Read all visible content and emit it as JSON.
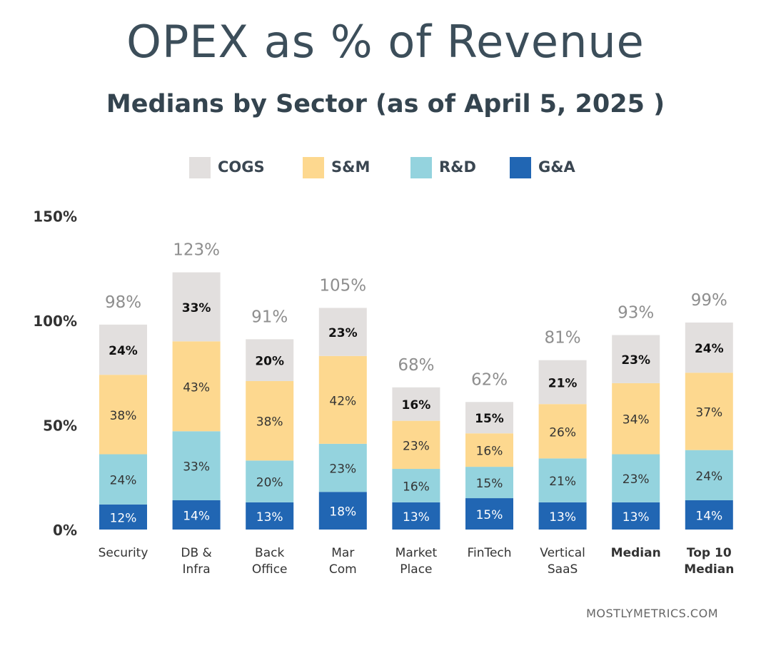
{
  "title": "OPEX as % of Revenue",
  "subtitle": "Medians by Sector (as of  April 5, 2025 )",
  "source": "MOSTLYMETRICS.COM",
  "colors": {
    "COGS": "#e2dfde",
    "S&M": "#fdd88f",
    "R&D": "#94d3de",
    "G&A": "#2166b3"
  },
  "chart_data": {
    "type": "bar",
    "stacked": true,
    "categories": [
      "Security",
      "DB &\nInfra",
      "Back\nOffice",
      "Mar\nCom",
      "Market\nPlace",
      "FinTech",
      "Vertical\nSaaS",
      "Median",
      "Top 10\nMedian"
    ],
    "bold_categories": [
      "Median",
      "Top 10\nMedian"
    ],
    "series": [
      {
        "name": "G&A",
        "values": [
          12,
          14,
          13,
          18,
          13,
          15,
          13,
          13,
          14
        ]
      },
      {
        "name": "R&D",
        "values": [
          24,
          33,
          20,
          23,
          16,
          15,
          21,
          23,
          24
        ]
      },
      {
        "name": "S&M",
        "values": [
          38,
          43,
          38,
          42,
          23,
          16,
          26,
          34,
          37
        ]
      },
      {
        "name": "COGS",
        "values": [
          24,
          33,
          20,
          23,
          16,
          15,
          21,
          23,
          24
        ]
      }
    ],
    "totals": [
      98,
      123,
      91,
      105,
      68,
      62,
      81,
      93,
      99
    ],
    "legend_order": [
      "COGS",
      "S&M",
      "R&D",
      "G&A"
    ],
    "legend_position": "top",
    "yticks": [
      "0%",
      "50%",
      "100%",
      "150%"
    ],
    "ylim": [
      0,
      150
    ],
    "grid": false
  }
}
